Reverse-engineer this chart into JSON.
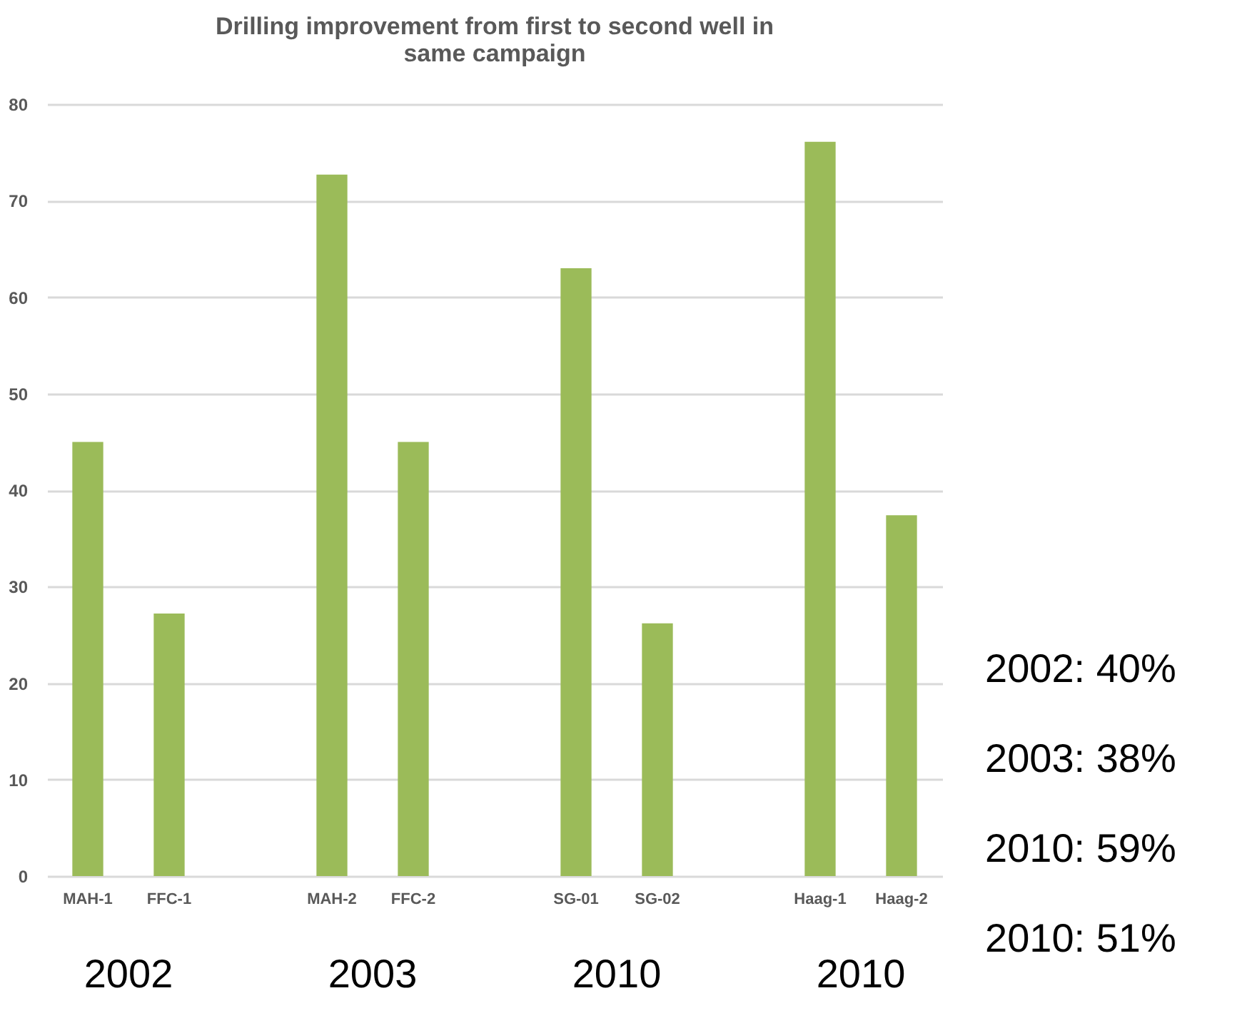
{
  "chart_data": {
    "type": "bar",
    "title": "Drilling improvement from first to second well in same campaign",
    "categories": [
      "MAH-1",
      "FFC-1",
      null,
      "MAH-2",
      "FFC-2",
      null,
      "SG-01",
      "SG-02",
      null,
      "Haag-1",
      "Haag-2"
    ],
    "values": [
      45,
      27.2,
      null,
      72.7,
      45,
      null,
      63,
      26.2,
      null,
      76.1,
      37.4
    ],
    "color": "#9bbb59",
    "ylim": [
      0,
      80
    ],
    "yticks": [
      0,
      10,
      20,
      30,
      40,
      50,
      60,
      70,
      80
    ],
    "grid": "y",
    "annotations": [
      "2002",
      "2003",
      "2010",
      "2010",
      "2002: 40%",
      "2003: 38%",
      "2010: 59%",
      "2010: 51%"
    ]
  }
}
